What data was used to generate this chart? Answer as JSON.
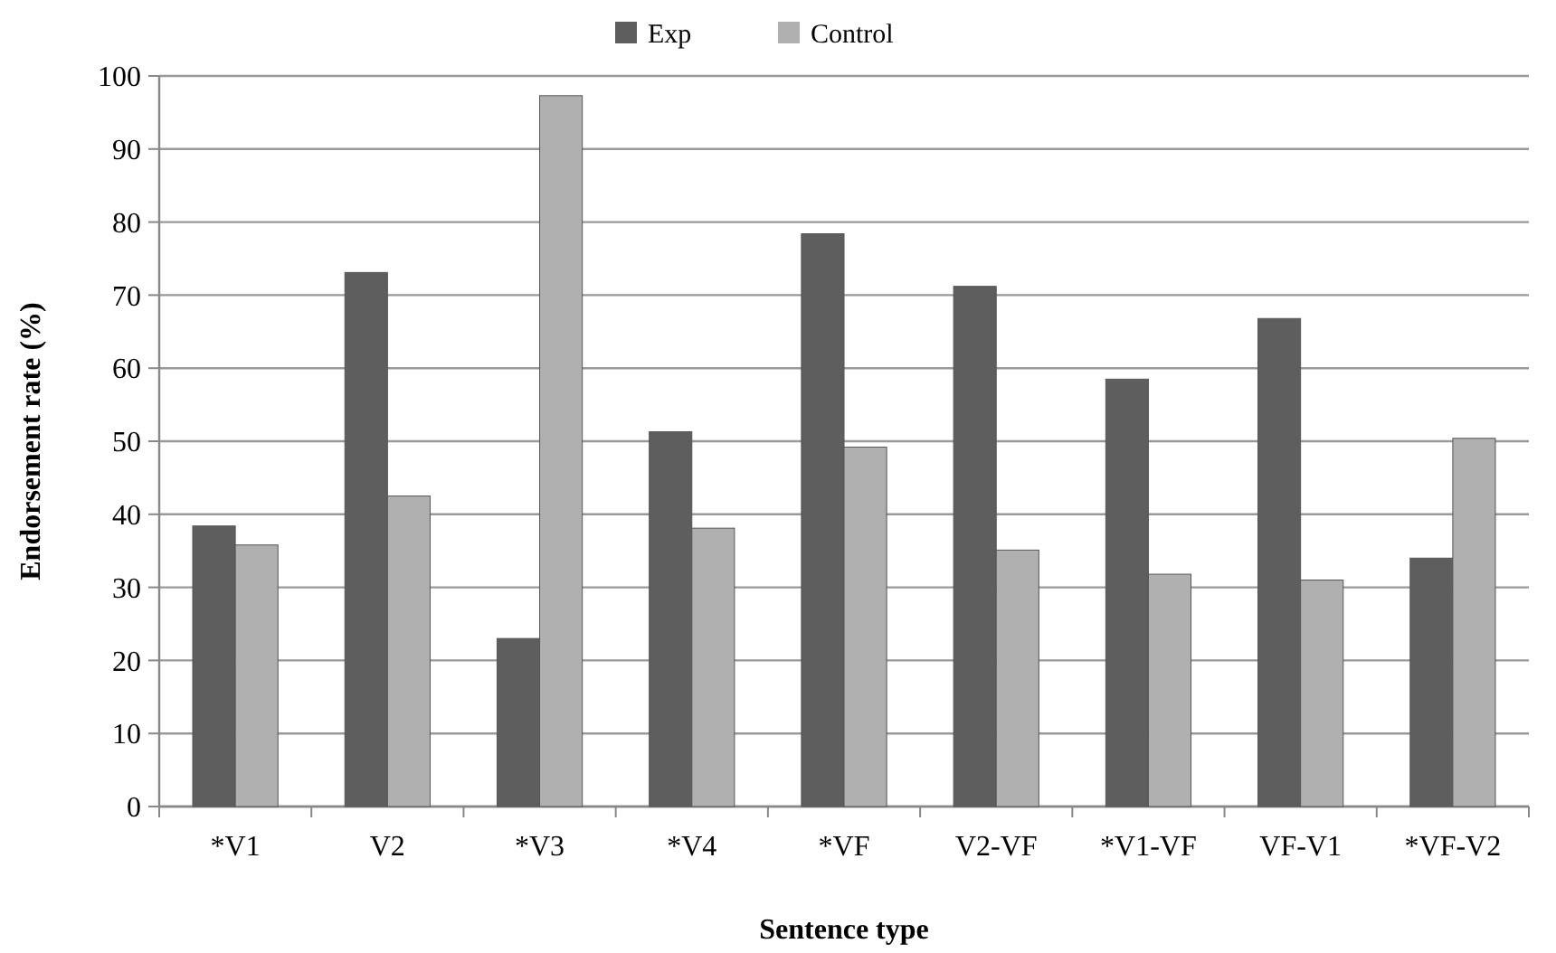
{
  "chart_data": {
    "type": "bar",
    "xlabel": "Sentence type",
    "ylabel": "Endorsement rate (%)",
    "categories": [
      "*V1",
      "V2",
      "*V3",
      "*V4",
      "*VF",
      "V2-VF",
      "*V1-VF",
      "VF-V1",
      "*VF-V2"
    ],
    "series": [
      {
        "name": "Exp",
        "color": "#5e5e5e",
        "values": [
          38.4,
          73.1,
          23.0,
          51.3,
          78.4,
          71.2,
          58.5,
          66.8,
          34.0
        ]
      },
      {
        "name": "Control",
        "color": "#b0b0b0",
        "values": [
          35.8,
          42.5,
          97.3,
          38.1,
          49.2,
          35.1,
          31.8,
          31.0,
          50.4
        ]
      }
    ],
    "ylim": [
      0,
      100
    ],
    "yticks": [
      0,
      10,
      20,
      30,
      40,
      50,
      60,
      70,
      80,
      90,
      100
    ],
    "grid": "y",
    "legend": "top"
  }
}
